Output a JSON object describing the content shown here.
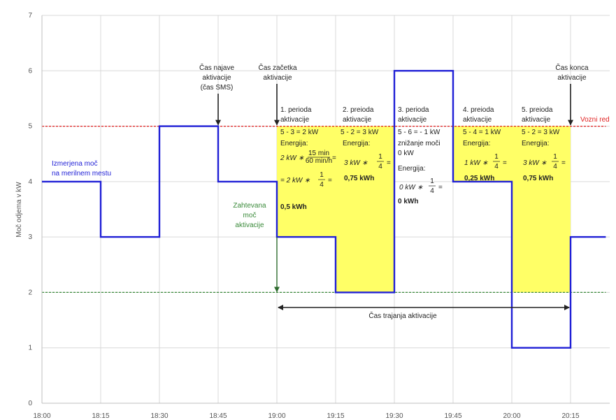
{
  "chart_data": {
    "type": "line",
    "ylabel": "Moč odjema v kW",
    "ylim": [
      0,
      7
    ],
    "yticks": [
      "0",
      "1",
      "2",
      "3",
      "4",
      "5",
      "6",
      "7"
    ],
    "xticks": [
      "18:00",
      "18:15",
      "18:30",
      "18:45",
      "19:00",
      "19:15",
      "19:30",
      "19:45",
      "20:00",
      "20:15"
    ],
    "grid": true,
    "series": [
      {
        "name": "Izmerjena moč na merilnem mestu",
        "color": "#1f1fd6",
        "x": [
          "18:00",
          "18:15",
          "18:15",
          "18:30",
          "18:30",
          "18:45",
          "18:45",
          "19:00",
          "19:00",
          "19:15",
          "19:15",
          "19:30",
          "19:30",
          "19:45",
          "19:45",
          "20:00",
          "20:00",
          "20:15",
          "20:15",
          "20:24"
        ],
        "values": [
          4,
          4,
          3,
          3,
          5,
          5,
          4,
          4,
          3,
          3,
          2,
          2,
          6,
          6,
          4,
          4,
          1,
          1,
          3,
          3
        ]
      },
      {
        "name": "Vozni red",
        "color": "#e02020",
        "style": "dashed",
        "x": [
          "18:00",
          "20:24"
        ],
        "values": [
          5,
          5
        ]
      },
      {
        "name": "Zahtevana moč aktivacije",
        "color": "#3a8a3a",
        "style": "dashed",
        "x": [
          "18:00",
          "20:24"
        ],
        "values": [
          2,
          2
        ]
      }
    ],
    "shaded_regions": [
      {
        "from": "19:00",
        "to": "19:15",
        "bottom": 3,
        "top": 5,
        "color": "#ffff66"
      },
      {
        "from": "19:15",
        "to": "19:30",
        "bottom": 2,
        "top": 5,
        "color": "#ffff66"
      },
      {
        "from": "19:45",
        "to": "20:00",
        "bottom": 4,
        "top": 5,
        "color": "#ffff66"
      },
      {
        "from": "20:00",
        "to": "20:15",
        "bottom": 2,
        "top": 5,
        "color": "#ffff66"
      }
    ],
    "annotations": {
      "measured_label": [
        "Izmerjena moč",
        "na merilnem mestu"
      ],
      "schedule_label": "Vozni red",
      "required_label": [
        "Zahtevana",
        "moč",
        "aktivacije"
      ],
      "announce_label": [
        "Čas najave",
        "aktivacije",
        "(čas SMS)"
      ],
      "start_label": [
        "Čas začetka",
        "aktivacije"
      ],
      "end_label": [
        "Čas konca",
        "aktivacije"
      ],
      "duration_label": "Čas trajanja aktivacije",
      "periods": [
        {
          "lines": [
            "1. perioda",
            "aktivacije",
            "5 - 3 = 2 kW",
            "Energija:"
          ],
          "formula1": "2 kW ∗",
          "frac_num": "15 min",
          "frac_den": "60 min/h",
          "formula1_end": "=",
          "formula2": "= 2 kW ∗",
          "frac2_num": "1",
          "frac2_den": "4",
          "formula2_end": "=",
          "result": "0,5 kWh"
        },
        {
          "lines": [
            "2. preioda",
            "aktivacije",
            "5 - 2 = 3 kW",
            "Energija:"
          ],
          "formula": "3 kW ∗",
          "frac_num": "1",
          "frac_den": "4",
          "formula_end": "=",
          "result": "0,75 kWh"
        },
        {
          "lines": [
            "3. perioda",
            "aktivacije",
            "5 - 6 = - 1 kW",
            "znižanje moči",
            "0 kW",
            "Energija:"
          ],
          "formula": "0 kW ∗",
          "frac_num": "1",
          "frac_den": "4",
          "formula_end": "=",
          "result": "0 kWh"
        },
        {
          "lines": [
            "4. preioda",
            "aktivacije",
            "5 - 4 = 1 kW",
            "Energija:"
          ],
          "formula": "1 kW ∗",
          "frac_num": "1",
          "frac_den": "4",
          "formula_end": "=",
          "result": "0,25 kWh"
        },
        {
          "lines": [
            "5. preioda",
            "aktivacije",
            "5 - 2 = 3 kW",
            "Energija:"
          ],
          "formula": "3 kW ∗",
          "frac_num": "1",
          "frac_den": "4",
          "formula_end": "=",
          "result": "0,75 kWh"
        }
      ]
    }
  }
}
